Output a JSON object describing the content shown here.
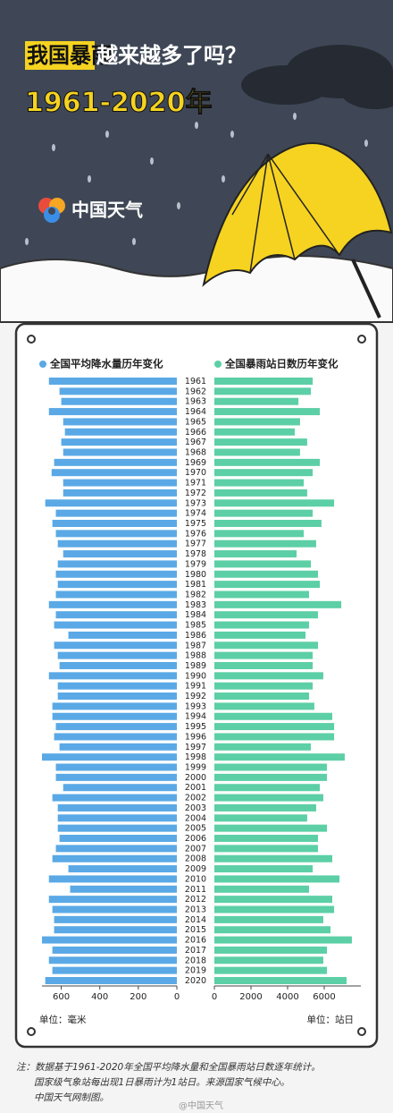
{
  "header": {
    "title_highlight": "我国暴雨",
    "title_rest": "越来越多了吗？",
    "subtitle": "1961-2020年",
    "logo": "中国天气"
  },
  "chart_data": {
    "type": "bar",
    "orientation": "horizontal",
    "categories": [
      "1961",
      "1962",
      "1963",
      "1964",
      "1965",
      "1966",
      "1967",
      "1968",
      "1969",
      "1970",
      "1971",
      "1972",
      "1973",
      "1974",
      "1975",
      "1976",
      "1977",
      "1978",
      "1979",
      "1980",
      "1981",
      "1982",
      "1983",
      "1984",
      "1985",
      "1986",
      "1987",
      "1988",
      "1989",
      "1990",
      "1991",
      "1992",
      "1993",
      "1994",
      "1995",
      "1996",
      "1997",
      "1998",
      "1999",
      "2000",
      "2001",
      "2002",
      "2003",
      "2004",
      "2005",
      "2006",
      "2007",
      "2008",
      "2009",
      "2010",
      "2011",
      "2012",
      "2013",
      "2014",
      "2015",
      "2016",
      "2017",
      "2018",
      "2019",
      "2020"
    ],
    "series": [
      {
        "name": "全国平均降水量历年变化",
        "color": "#5aa9e6",
        "unit_label": "单位：毫米",
        "xlim": [
          0,
          700
        ],
        "xticks": [
          600,
          400,
          200,
          0
        ],
        "values": [
          664,
          609,
          600,
          664,
          590,
          581,
          600,
          590,
          637,
          650,
          590,
          590,
          683,
          628,
          646,
          628,
          618,
          590,
          618,
          628,
          618,
          628,
          664,
          628,
          637,
          563,
          637,
          618,
          609,
          664,
          618,
          618,
          646,
          646,
          628,
          637,
          609,
          700,
          628,
          628,
          590,
          646,
          618,
          618,
          618,
          609,
          628,
          646,
          563,
          664,
          554,
          664,
          646,
          637,
          637,
          700,
          646,
          664,
          646,
          683
        ]
      },
      {
        "name": "全国暴雨站日数历年变化",
        "color": "#5ccfa6",
        "unit_label": "单位：站日",
        "xlim": [
          0,
          8000
        ],
        "xticks": [
          0,
          2000,
          4000,
          6000
        ],
        "values": [
          5370,
          5270,
          4590,
          5760,
          4680,
          4390,
          5070,
          4680,
          5760,
          5370,
          4880,
          5070,
          6540,
          5370,
          5850,
          4880,
          5560,
          4490,
          5270,
          5660,
          5760,
          5170,
          6930,
          5660,
          5170,
          4980,
          5660,
          5370,
          5370,
          5950,
          5370,
          5170,
          5460,
          6440,
          6540,
          6540,
          5270,
          7120,
          6150,
          6150,
          5760,
          5950,
          5560,
          5070,
          6150,
          5660,
          5660,
          6440,
          5370,
          6830,
          5170,
          6440,
          6540,
          5950,
          6340,
          7510,
          6150,
          5950,
          6150,
          7220
        ]
      }
    ]
  },
  "footnote": [
    "注：数据基于1961-2020年全国平均降水量和全国暴雨站日数逐年统计。",
    "国家级气象站每出现1日暴雨计为1站日。来源国家气候中心。",
    "中国天气网制图。"
  ],
  "watermark": "@中国天气"
}
